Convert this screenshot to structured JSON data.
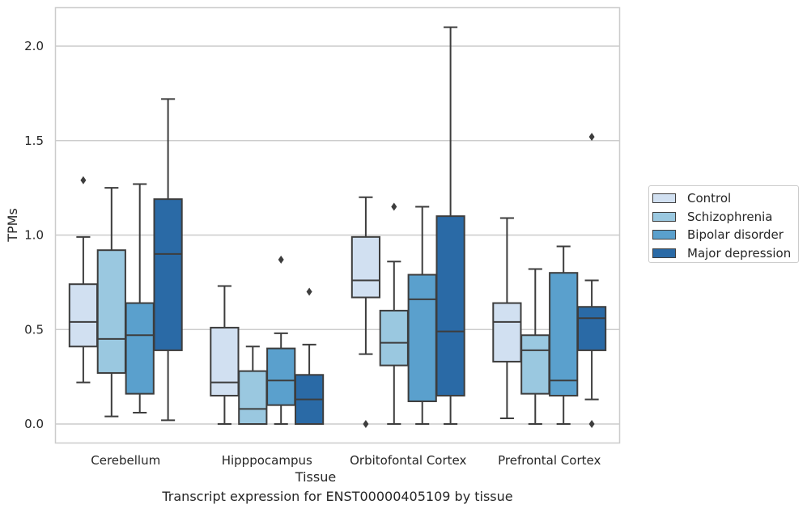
{
  "caption": "Transcript expression for ENST00000405109 by tissue",
  "chart_data": {
    "type": "box",
    "xlabel": "Tissue",
    "ylabel": "TPMs",
    "ylim": [
      -0.1,
      2.22
    ],
    "yticks": [
      "0.0",
      "0.5",
      "1.0",
      "1.5",
      "2.0"
    ],
    "grid": "horizontal",
    "legend_placement": "right",
    "categories": [
      "Cerebellum",
      "Hipppocampus",
      "Orbitofontal Cortex",
      "Prefrontal Cortex"
    ],
    "series": [
      {
        "name": "Control",
        "color": "#d1e0f1",
        "boxes": [
          {
            "whislo": 0.22,
            "q1": 0.41,
            "med": 0.54,
            "q3": 0.74,
            "whishi": 0.99,
            "fliers": [
              1.29
            ]
          },
          {
            "whislo": 0.0,
            "q1": 0.15,
            "med": 0.22,
            "q3": 0.51,
            "whishi": 0.73,
            "fliers": []
          },
          {
            "whislo": 0.37,
            "q1": 0.67,
            "med": 0.76,
            "q3": 0.99,
            "whishi": 1.2,
            "fliers": [
              0.0
            ]
          },
          {
            "whislo": 0.03,
            "q1": 0.33,
            "med": 0.54,
            "q3": 0.64,
            "whishi": 1.09,
            "fliers": []
          }
        ]
      },
      {
        "name": "Schizophrenia",
        "color": "#9ac8e0",
        "boxes": [
          {
            "whislo": 0.04,
            "q1": 0.27,
            "med": 0.45,
            "q3": 0.92,
            "whishi": 1.25,
            "fliers": []
          },
          {
            "whislo": 0.0,
            "q1": 0.0,
            "med": 0.08,
            "q3": 0.28,
            "whishi": 0.41,
            "fliers": []
          },
          {
            "whislo": 0.0,
            "q1": 0.31,
            "med": 0.43,
            "q3": 0.6,
            "whishi": 0.86,
            "fliers": [
              1.15
            ]
          },
          {
            "whislo": 0.0,
            "q1": 0.16,
            "med": 0.39,
            "q3": 0.47,
            "whishi": 0.82,
            "fliers": []
          }
        ]
      },
      {
        "name": "Bipolar disorder",
        "color": "#5aa0cd",
        "boxes": [
          {
            "whislo": 0.06,
            "q1": 0.16,
            "med": 0.47,
            "q3": 0.64,
            "whishi": 1.27,
            "fliers": []
          },
          {
            "whislo": 0.0,
            "q1": 0.1,
            "med": 0.23,
            "q3": 0.4,
            "whishi": 0.48,
            "fliers": [
              0.87
            ]
          },
          {
            "whislo": 0.0,
            "q1": 0.12,
            "med": 0.66,
            "q3": 0.79,
            "whishi": 1.15,
            "fliers": []
          },
          {
            "whislo": 0.0,
            "q1": 0.15,
            "med": 0.23,
            "q3": 0.8,
            "whishi": 0.94,
            "fliers": []
          }
        ]
      },
      {
        "name": "Major depression",
        "color": "#2a6aa6",
        "boxes": [
          {
            "whislo": 0.02,
            "q1": 0.39,
            "med": 0.9,
            "q3": 1.19,
            "whishi": 1.72,
            "fliers": []
          },
          {
            "whislo": 0.0,
            "q1": 0.0,
            "med": 0.13,
            "q3": 0.26,
            "whishi": 0.42,
            "fliers": [
              0.7
            ]
          },
          {
            "whislo": 0.0,
            "q1": 0.15,
            "med": 0.49,
            "q3": 1.1,
            "whishi": 2.1,
            "fliers": []
          },
          {
            "whislo": 0.13,
            "q1": 0.39,
            "med": 0.56,
            "q3": 0.62,
            "whishi": 0.76,
            "fliers": [
              0.0,
              1.52
            ]
          }
        ]
      }
    ]
  }
}
